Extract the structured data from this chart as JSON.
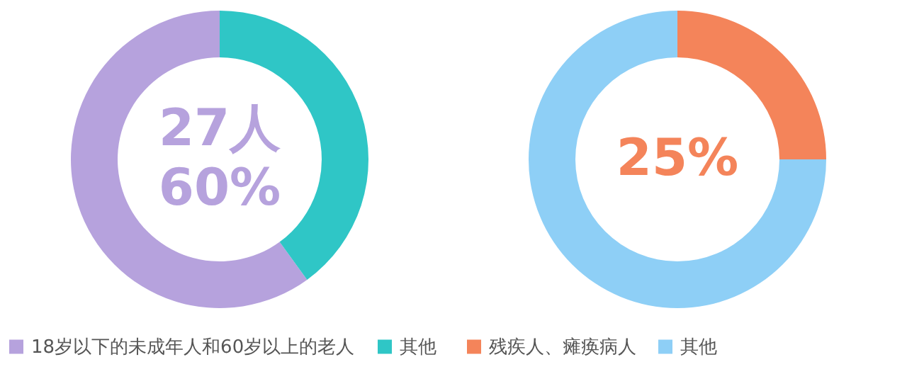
{
  "chart_data": [
    {
      "type": "donut",
      "categories": [
        "18岁以下的未成年人和60岁以上的老人",
        "其他"
      ],
      "values": [
        60,
        40
      ],
      "colors": [
        "#b6a2dd",
        "#2fc6c6"
      ],
      "legend": "bottom",
      "annotations": [
        "27人",
        "60%"
      ]
    },
    {
      "type": "donut",
      "categories": [
        "残疾人、瘫痪病人",
        "其他"
      ],
      "values": [
        25,
        75
      ],
      "colors": [
        "#f4845a",
        "#8ecff6"
      ],
      "legend": "bottom",
      "annotations": [
        "25%"
      ]
    }
  ]
}
